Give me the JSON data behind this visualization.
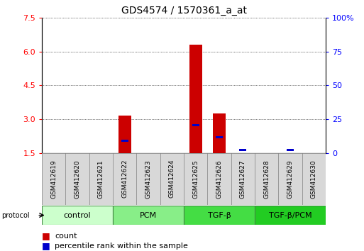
{
  "title": "GDS4574 / 1570361_a_at",
  "samples": [
    "GSM412619",
    "GSM412620",
    "GSM412621",
    "GSM412622",
    "GSM412623",
    "GSM412624",
    "GSM412625",
    "GSM412626",
    "GSM412627",
    "GSM412628",
    "GSM412629",
    "GSM412630"
  ],
  "count_values": [
    1.5,
    1.5,
    1.5,
    3.15,
    1.5,
    1.5,
    6.3,
    3.25,
    1.5,
    1.5,
    1.5,
    1.5
  ],
  "percentile_values": [
    null,
    null,
    null,
    2.05,
    null,
    null,
    2.75,
    2.2,
    1.65,
    null,
    1.65,
    null
  ],
  "ylim": [
    1.5,
    7.5
  ],
  "yticks": [
    1.5,
    3.0,
    4.5,
    6.0,
    7.5
  ],
  "y2ticks": [
    0,
    25,
    50,
    75,
    100
  ],
  "y2labels": [
    "0",
    "25",
    "50",
    "75",
    "100%"
  ],
  "groups": [
    {
      "label": "control",
      "start": 0,
      "end": 3,
      "color": "#ccffcc"
    },
    {
      "label": "PCM",
      "start": 3,
      "end": 6,
      "color": "#88ee88"
    },
    {
      "label": "TGF-β",
      "start": 6,
      "end": 9,
      "color": "#44dd44"
    },
    {
      "label": "TGF-β/PCM",
      "start": 9,
      "end": 12,
      "color": "#22cc22"
    }
  ],
  "bar_color": "#cc0000",
  "percentile_color": "#0000cc",
  "bar_width": 0.55,
  "grid_color": "black",
  "title_fontsize": 10,
  "tick_fontsize": 8,
  "label_fontsize": 8,
  "legend_fontsize": 8
}
